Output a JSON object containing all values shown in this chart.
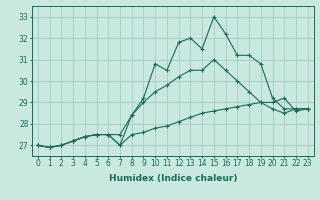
{
  "xlabel": "Humidex (Indice chaleur)",
  "xlim_min": -0.5,
  "xlim_max": 23.5,
  "ylim_min": 26.5,
  "ylim_max": 33.5,
  "yticks": [
    27,
    28,
    29,
    30,
    31,
    32,
    33
  ],
  "xticks": [
    0,
    1,
    2,
    3,
    4,
    5,
    6,
    7,
    8,
    9,
    10,
    11,
    12,
    13,
    14,
    15,
    16,
    17,
    18,
    19,
    20,
    21,
    22,
    23
  ],
  "bg_color": "#c8e8e0",
  "grid_color": "#a0c8c0",
  "line_color": "#1a6b5a",
  "series": [
    [
      27.0,
      26.9,
      27.0,
      27.2,
      27.4,
      27.5,
      27.5,
      27.0,
      28.4,
      29.2,
      30.8,
      30.5,
      31.8,
      32.0,
      31.5,
      33.0,
      32.2,
      31.2,
      31.2,
      30.8,
      29.2,
      28.7,
      28.7,
      28.7
    ],
    [
      27.0,
      26.9,
      27.0,
      27.2,
      27.4,
      27.5,
      27.5,
      27.5,
      28.4,
      29.0,
      29.5,
      29.8,
      30.2,
      30.5,
      30.5,
      31.0,
      30.5,
      30.0,
      29.5,
      29.0,
      28.7,
      28.5,
      28.7,
      28.7
    ],
    [
      27.0,
      26.9,
      27.0,
      27.2,
      27.4,
      27.5,
      27.5,
      27.0,
      27.5,
      27.6,
      27.8,
      27.9,
      28.1,
      28.3,
      28.5,
      28.6,
      28.7,
      28.8,
      28.9,
      29.0,
      29.0,
      29.2,
      28.6,
      28.7
    ]
  ],
  "tick_fontsize": 5.5,
  "xlabel_fontsize": 6.5,
  "tick_color": "#1a6b5a",
  "spine_color": "#1a6b5a"
}
